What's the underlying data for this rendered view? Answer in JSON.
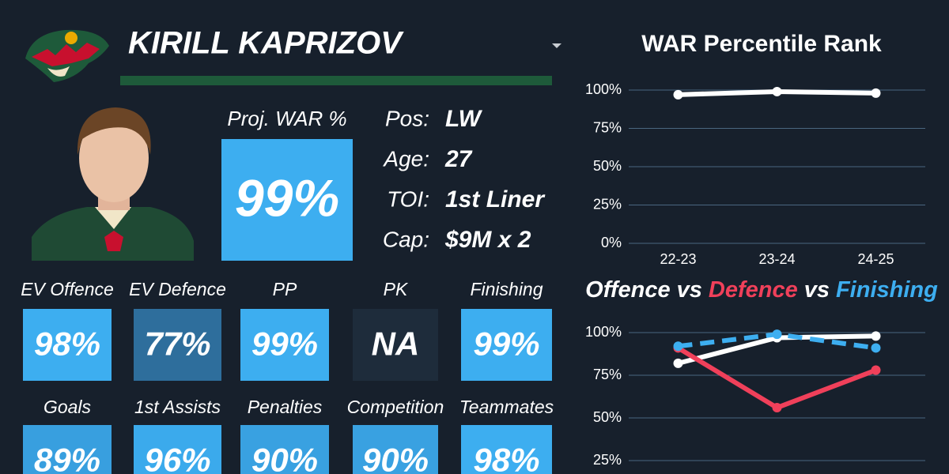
{
  "player": {
    "name": "KIRILL KAPRIZOV"
  },
  "projection": {
    "label": "Proj. WAR %",
    "value": "99%",
    "color": "#3daef0"
  },
  "info": [
    {
      "label": "Pos:",
      "value": "LW"
    },
    {
      "label": "Age:",
      "value": 27
    },
    {
      "label": "TOI:",
      "value": "1st Liner"
    },
    {
      "label": "Cap:",
      "value": "$9M x 2"
    }
  ],
  "tiles": [
    [
      {
        "label": "EV Offence",
        "value": "98%",
        "color": "#3daef0"
      },
      {
        "label": "EV Defence",
        "value": "77%",
        "color": "#2e6e9c"
      },
      {
        "label": "PP",
        "value": "99%",
        "color": "#3daef0"
      },
      {
        "label": "PK",
        "value": "NA",
        "color": "#1e2c3b"
      },
      {
        "label": "Finishing",
        "value": "99%",
        "color": "#3daef0"
      }
    ],
    [
      {
        "label": "Goals",
        "value": "89%",
        "color": "#389fdf"
      },
      {
        "label": "1st Assists",
        "value": "96%",
        "color": "#3baaec"
      },
      {
        "label": "Penalties",
        "value": "90%",
        "color": "#39a1e1"
      },
      {
        "label": "Competition",
        "value": "90%",
        "color": "#39a1e1"
      },
      {
        "label": "Teammates",
        "value": "98%",
        "color": "#3daef0"
      }
    ]
  ],
  "chart_data": [
    {
      "type": "line",
      "title": "WAR Percentile Rank",
      "categories": [
        "22-23",
        "23-24",
        "24-25"
      ],
      "series": [
        {
          "name": "WAR",
          "color": "#ffffff",
          "style": "solid",
          "values": [
            97,
            99,
            98
          ]
        }
      ],
      "ylim": [
        0,
        100
      ],
      "yticks": [
        {
          "value": 0,
          "label": "0%"
        },
        {
          "value": 25,
          "label": "25%"
        },
        {
          "value": 50,
          "label": "50%"
        },
        {
          "value": 75,
          "label": "75%"
        },
        {
          "value": 100,
          "label": "100%"
        }
      ],
      "grid": true
    },
    {
      "type": "line",
      "title_joiner": "vs",
      "series": [
        {
          "name": "Offence",
          "color": "#ffffff",
          "style": "solid",
          "values": [
            82,
            97,
            98
          ]
        },
        {
          "name": "Defence",
          "color": "#f0405a",
          "style": "solid",
          "values": [
            91,
            56,
            78
          ]
        },
        {
          "name": "Finishing",
          "color": "#3daef0",
          "style": "dashed",
          "values": [
            92,
            99,
            91
          ]
        }
      ],
      "ylim": [
        0,
        100
      ],
      "yticks": [
        {
          "value": 25,
          "label": "25%"
        },
        {
          "value": 50,
          "label": "50%"
        },
        {
          "value": 75,
          "label": "75%"
        },
        {
          "value": 100,
          "label": "100%"
        }
      ],
      "grid": true
    }
  ]
}
